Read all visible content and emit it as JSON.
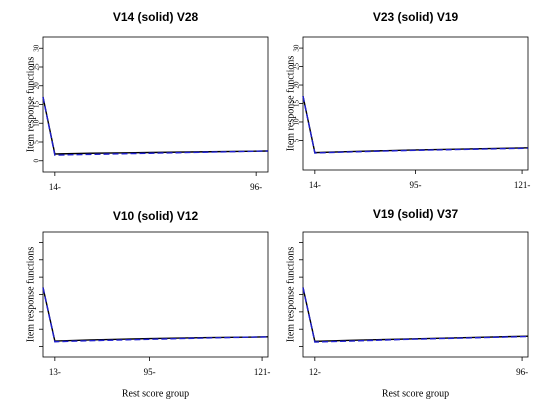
{
  "chart_data": [
    {
      "type": "line",
      "title": "V14 (solid) V28",
      "y_label": "Item response functions",
      "x": [
        1,
        2,
        5,
        10,
        15,
        20
      ],
      "xlim": [
        1,
        20
      ],
      "ylim": [
        -3,
        33
      ],
      "xticks": [
        {
          "value": 2,
          "label": "14-"
        },
        {
          "value": 19,
          "label": "96-"
        }
      ],
      "yticks": [
        0,
        5,
        10,
        15,
        20,
        25,
        30
      ],
      "ytick_labels": true,
      "series": [
        {
          "color": "#000000",
          "dash": false,
          "values": [
            17,
            1.8,
            2,
            2.2,
            2.4,
            2.6
          ]
        },
        {
          "color": "#1f1fd0",
          "dash": true,
          "values": [
            17,
            1.5,
            1.7,
            2,
            2.3,
            2.6
          ]
        }
      ]
    },
    {
      "type": "line",
      "title": "V23 (solid) V19",
      "y_label": "Item response functions",
      "x": [
        1,
        2,
        5,
        10,
        15,
        20
      ],
      "xlim": [
        1,
        20
      ],
      "ylim": [
        -3,
        33
      ],
      "xticks": [
        {
          "value": 2,
          "label": "14-"
        },
        {
          "value": 10.5,
          "label": "95-"
        },
        {
          "value": 19.5,
          "label": "121-"
        }
      ],
      "yticks": [
        5,
        10,
        15,
        20,
        25,
        30
      ],
      "ytick_labels": true,
      "series": [
        {
          "color": "#000000",
          "dash": false,
          "values": [
            17,
            1.7,
            2,
            2.4,
            2.7,
            3
          ]
        },
        {
          "color": "#1f1fd0",
          "dash": true,
          "values": [
            17,
            1.6,
            1.9,
            2.3,
            2.6,
            2.9
          ]
        }
      ]
    },
    {
      "type": "line",
      "title": "V10 (solid) V12",
      "y_label": "Item response functions",
      "x_label": "Rest score group",
      "x": [
        1,
        2,
        5,
        10,
        15,
        20
      ],
      "xlim": [
        1,
        20
      ],
      "ylim": [
        -3,
        33
      ],
      "xticks": [
        {
          "value": 2,
          "label": "13-"
        },
        {
          "value": 10,
          "label": "95-"
        },
        {
          "value": 19.5,
          "label": "121-"
        }
      ],
      "yticks": [
        0,
        5,
        10,
        15,
        20,
        25,
        30
      ],
      "ytick_labels": false,
      "series": [
        {
          "color": "#000000",
          "dash": false,
          "values": [
            17,
            1.6,
            1.9,
            2.3,
            2.6,
            2.8
          ]
        },
        {
          "color": "#1f1fd0",
          "dash": true,
          "values": [
            17,
            1.4,
            1.7,
            2.1,
            2.5,
            2.8
          ]
        }
      ]
    },
    {
      "type": "line",
      "title": "V19 (solid) V37",
      "y_label": "Item response functions",
      "x_label": "Rest score group",
      "x": [
        1,
        2,
        5,
        10,
        15,
        20
      ],
      "xlim": [
        1,
        20
      ],
      "ylim": [
        -3,
        33
      ],
      "xticks": [
        {
          "value": 2,
          "label": "12-"
        },
        {
          "value": 19.5,
          "label": "96-"
        }
      ],
      "yticks": [
        0,
        5,
        10,
        15,
        20,
        25,
        30
      ],
      "ytick_labels": false,
      "series": [
        {
          "color": "#000000",
          "dash": false,
          "values": [
            17,
            1.5,
            1.8,
            2.2,
            2.6,
            3
          ]
        },
        {
          "color": "#1f1fd0",
          "dash": true,
          "values": [
            17,
            1.3,
            1.6,
            2.1,
            2.5,
            2.9
          ]
        }
      ]
    }
  ]
}
